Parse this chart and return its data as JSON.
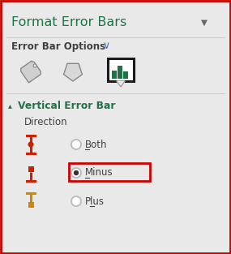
{
  "title": "Format Error Bars",
  "title_color": "#217346",
  "dropdown_arrow": "▼",
  "section1_label": "Error Bar Options",
  "section1_chevron_color": "#4472c4",
  "section2_label": "Vertical Error Bar",
  "section2_color": "#217346",
  "direction_label": "Direction",
  "options": [
    "Both",
    "Minus",
    "Plus"
  ],
  "bg_color": "#e9e9e9",
  "border_color": "#cc0000",
  "text_color": "#404040",
  "icon_bar_color": "#217346",
  "icon_border_color": "#1a1a1a",
  "icon_bg_color": "#ffffff",
  "both_icon_color": "#cc2200",
  "minus_icon_color": "#cc2200",
  "plus_icon_color": "#cc8800",
  "minus_box_color": "#cc0000",
  "radio_border_color": "#aaaaaa",
  "radio_fill_color": "#333333",
  "sep_color": "#cccccc",
  "arrow_color": "#666666",
  "triangle_color": "#888888"
}
